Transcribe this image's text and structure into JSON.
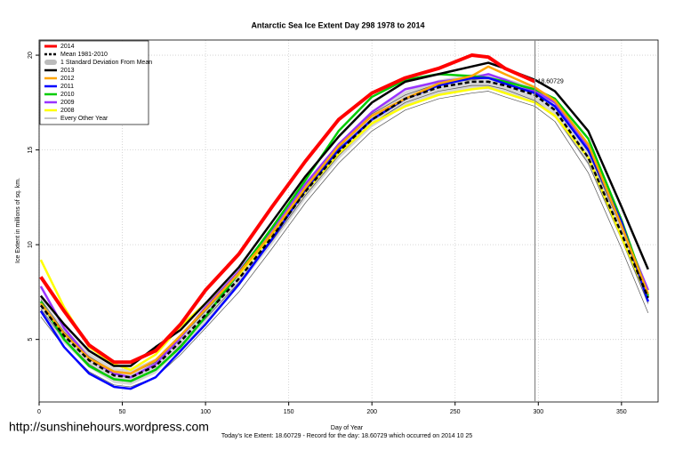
{
  "chart_data": {
    "type": "line",
    "title": "Antarctic Sea Ice Extent Day 298 1978 to 2014",
    "x_label": "Day of Year",
    "y_label": "Ice Extent in millions of sq. km.",
    "footer": "Today's Ice Extent: 18.60729  - Record for the day: 18.60729 which occurred on 2014 10 25",
    "watermark": "http://sunshinehours.wordpress.com",
    "annotation": "18.60729",
    "vline": 298,
    "vline_color": "#888888",
    "xlim": [
      0,
      372
    ],
    "ylim": [
      1.7,
      20.8
    ],
    "xticks": [
      0,
      50,
      100,
      150,
      200,
      250,
      300,
      350
    ],
    "yticks": [
      5,
      10,
      15,
      20
    ],
    "grid": true,
    "legend": "top-left",
    "x": [
      1,
      15,
      30,
      45,
      55,
      70,
      85,
      100,
      120,
      140,
      160,
      180,
      200,
      220,
      240,
      260,
      270,
      280,
      298,
      310,
      330,
      350,
      366
    ],
    "band": {
      "name": "1 Standard Deviation From Mean",
      "color": "#bbbbbb",
      "lower": [
        6.4,
        4.8,
        3.5,
        2.7,
        2.6,
        3.2,
        4.5,
        5.9,
        7.8,
        10.0,
        12.4,
        14.5,
        16.2,
        17.3,
        17.9,
        18.2,
        18.2,
        18.0,
        17.5,
        16.7,
        14.2,
        10.2,
        6.8
      ],
      "upper": [
        7.2,
        5.6,
        4.3,
        3.5,
        3.4,
        4.0,
        5.3,
        6.7,
        8.6,
        10.8,
        13.2,
        15.3,
        17.0,
        18.1,
        18.7,
        19.0,
        19.0,
        18.8,
        18.3,
        17.5,
        15.0,
        11.0,
        7.6
      ]
    },
    "series": [
      {
        "name": "2014",
        "color": "#ff0000",
        "width": 4,
        "values": [
          8.3,
          6.5,
          4.7,
          3.8,
          3.8,
          4.4,
          5.8,
          7.6,
          9.5,
          12.0,
          14.4,
          16.6,
          18.0,
          18.8,
          19.3,
          20.0,
          19.9,
          19.3,
          18.61,
          null,
          null,
          null,
          null
        ]
      },
      {
        "name": "Mean 1981-2010",
        "color": "#000000",
        "width": 2.5,
        "dashed": true,
        "values": [
          6.8,
          5.2,
          3.9,
          3.1,
          3.0,
          3.6,
          4.9,
          6.3,
          8.2,
          10.4,
          12.8,
          14.9,
          16.6,
          17.7,
          18.3,
          18.6,
          18.6,
          18.4,
          17.9,
          17.1,
          14.6,
          10.6,
          7.2
        ]
      },
      {
        "name": "2013",
        "color": "#000000",
        "width": 2.5,
        "values": [
          7.3,
          5.8,
          4.4,
          3.6,
          3.6,
          4.6,
          5.5,
          6.9,
          8.8,
          11.2,
          13.6,
          15.7,
          17.5,
          18.6,
          19.0,
          19.4,
          19.6,
          19.3,
          18.7,
          18.1,
          16.0,
          12.0,
          8.7
        ]
      },
      {
        "name": "2012",
        "color": "#ffa500",
        "width": 2.5,
        "values": [
          6.9,
          5.3,
          4.0,
          3.3,
          3.2,
          3.9,
          5.2,
          6.6,
          8.5,
          10.6,
          13.0,
          15.2,
          16.8,
          17.7,
          18.5,
          18.9,
          19.4,
          19.0,
          18.3,
          17.6,
          15.3,
          11.0,
          7.4
        ]
      },
      {
        "name": "2011",
        "color": "#0000ff",
        "width": 2.5,
        "values": [
          6.5,
          4.6,
          3.2,
          2.5,
          2.4,
          3.0,
          4.4,
          5.8,
          7.9,
          10.3,
          12.9,
          15.0,
          16.6,
          17.7,
          18.4,
          18.8,
          18.8,
          18.5,
          18.0,
          17.3,
          15.0,
          11.2,
          7.0
        ]
      },
      {
        "name": "2010",
        "color": "#00cc00",
        "width": 2.5,
        "values": [
          7.0,
          5.0,
          3.6,
          2.9,
          2.8,
          3.4,
          4.6,
          6.2,
          8.5,
          10.9,
          13.4,
          16.0,
          17.8,
          18.7,
          19.0,
          18.9,
          18.8,
          18.6,
          18.2,
          17.7,
          15.6,
          11.3,
          7.3
        ]
      },
      {
        "name": "2009",
        "color": "#9933ff",
        "width": 2.5,
        "values": [
          7.8,
          5.6,
          4.0,
          3.2,
          3.0,
          3.7,
          5.1,
          6.7,
          8.6,
          10.8,
          13.2,
          15.3,
          17.0,
          18.2,
          18.6,
          18.8,
          19.0,
          18.7,
          18.1,
          17.5,
          15.2,
          11.0,
          7.6
        ]
      },
      {
        "name": "2008",
        "color": "#ffff00",
        "width": 2.5,
        "values": [
          9.2,
          6.7,
          4.6,
          3.7,
          3.4,
          4.2,
          5.7,
          6.9,
          8.4,
          10.5,
          12.8,
          14.8,
          16.4,
          17.3,
          17.9,
          18.2,
          18.3,
          18.0,
          17.5,
          16.8,
          14.6,
          10.4,
          7.2
        ]
      },
      {
        "name": "Every Other Year",
        "color": "#555555",
        "width": 0.7,
        "values": [
          [
            6.2,
            4.6,
            3.3,
            2.6,
            2.5,
            3.0,
            4.2,
            5.6,
            7.5,
            9.8,
            12.2,
            14.3,
            16.0,
            17.1,
            17.7,
            18.0,
            18.1,
            17.8,
            17.3,
            16.5,
            13.8,
            9.8,
            6.4
          ],
          [
            7.1,
            5.4,
            4.1,
            3.3,
            3.2,
            3.8,
            5.1,
            6.5,
            8.4,
            10.6,
            13.0,
            15.1,
            16.9,
            17.9,
            18.5,
            18.7,
            18.8,
            18.5,
            18.0,
            17.3,
            14.9,
            10.9,
            7.5
          ],
          [
            6.6,
            5.0,
            3.7,
            2.9,
            2.8,
            3.4,
            4.7,
            6.1,
            8.0,
            10.2,
            12.6,
            14.7,
            16.4,
            17.5,
            18.1,
            18.4,
            18.4,
            18.2,
            17.6,
            16.8,
            14.3,
            10.3,
            6.9
          ]
        ]
      }
    ]
  }
}
